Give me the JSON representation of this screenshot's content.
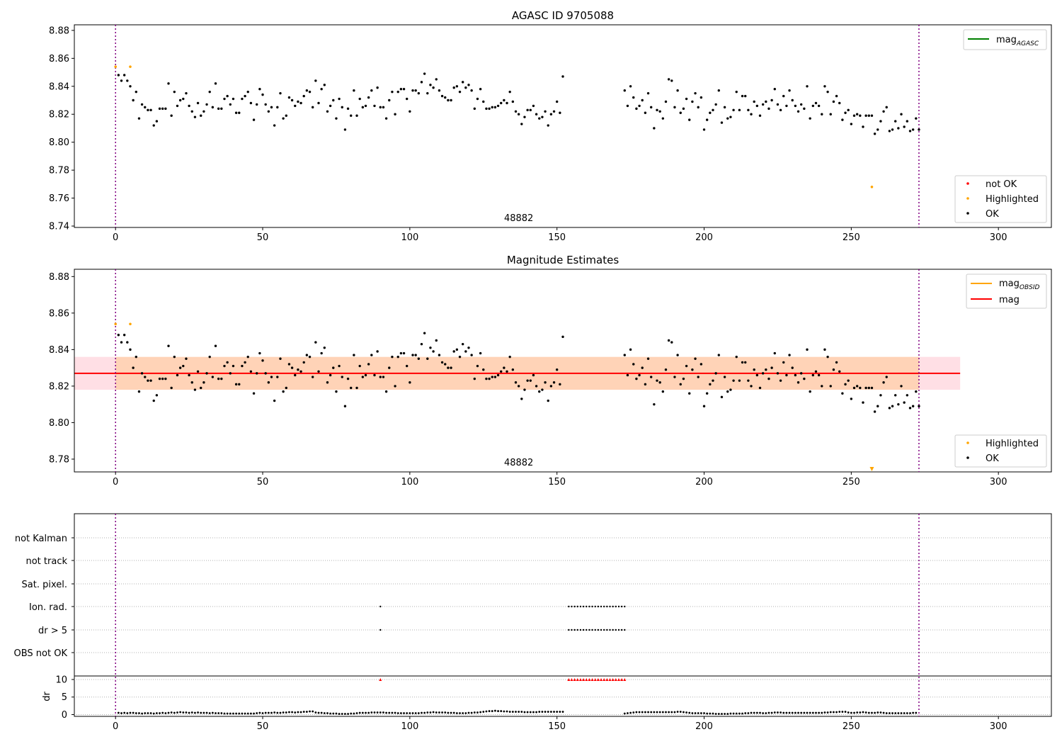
{
  "chart_data": [
    {
      "type": "scatter",
      "title": "AGASC ID 9705088",
      "xlim": [
        -14,
        318
      ],
      "ylim": [
        8.739,
        8.884
      ],
      "xticks": [
        "0",
        "50",
        "100",
        "150",
        "200",
        "250",
        "300"
      ],
      "yticks": [
        "8.74",
        "8.76",
        "8.78",
        "8.80",
        "8.82",
        "8.84",
        "8.86",
        "8.88"
      ],
      "obsid_label": "48882",
      "obsid_label_x": 137,
      "vlines": [
        0,
        273
      ],
      "lines_legend": [
        {
          "name": "mag_AGASC",
          "color": "#008000"
        }
      ],
      "points_legend": [
        {
          "name": "not OK",
          "color": "#ff0000"
        },
        {
          "name": "Highlighted",
          "color": "#ffa500"
        },
        {
          "name": "OK",
          "color": "#000000"
        }
      ],
      "highlighted_points": [
        [
          0,
          8.854
        ],
        [
          5,
          8.854
        ],
        [
          257,
          8.768
        ]
      ]
    },
    {
      "type": "scatter",
      "title": "Magnitude Estimates",
      "xlim": [
        -14,
        318
      ],
      "ylim": [
        8.773,
        8.884
      ],
      "xticks": [
        "0",
        "50",
        "100",
        "150",
        "200",
        "250",
        "300"
      ],
      "yticks": [
        "8.78",
        "8.80",
        "8.82",
        "8.84",
        "8.86",
        "8.88"
      ],
      "obsid_label": "48882",
      "obsid_label_x": 137,
      "vlines": [
        0,
        273
      ],
      "mag": 8.827,
      "band": [
        8.818,
        8.836
      ],
      "band_x": [
        -14,
        287
      ],
      "lines_legend": [
        {
          "name": "mag_OBSID",
          "color": "#ffa500"
        },
        {
          "name": "mag",
          "color": "#ff0000"
        }
      ],
      "points_legend": [
        {
          "name": "Highlighted",
          "color": "#ffa500"
        },
        {
          "name": "OK",
          "color": "#000000"
        }
      ],
      "highlighted_points": [
        [
          0,
          8.854
        ],
        [
          5,
          8.854
        ]
      ],
      "out_of_range_marker": {
        "x": 257,
        "color": "#ffa500"
      }
    },
    {
      "type": "scatter",
      "title": "",
      "xlim": [
        -14,
        318
      ],
      "xticks": [
        "0",
        "50",
        "100",
        "150",
        "200",
        "250",
        "300"
      ],
      "vlines": [
        0,
        273
      ],
      "flag_rows": [
        "not Kalman",
        "not track",
        "Sat. pixel.",
        "Ion. rad.",
        "dr > 5",
        "OBS not OK"
      ],
      "flags": {
        "Ion. rad.": [
          90,
          154,
          155,
          156,
          157,
          158,
          159,
          160,
          161,
          162,
          163,
          164,
          165,
          166,
          167,
          168,
          169,
          170,
          171,
          172,
          173
        ],
        "dr > 5": [
          90,
          154,
          155,
          156,
          157,
          158,
          159,
          160,
          161,
          162,
          163,
          164,
          165,
          166,
          167,
          168,
          169,
          170,
          171,
          172,
          173
        ]
      },
      "dr_ylabel": "dr",
      "dr_yticks": [
        "0",
        "5",
        "10"
      ],
      "dr_ylim": [
        -0.5,
        11
      ],
      "dr_clipped_x": [
        90,
        154,
        155,
        156,
        157,
        158,
        159,
        160,
        161,
        162,
        163,
        164,
        165,
        166,
        167,
        168,
        169,
        170,
        171,
        172,
        173
      ],
      "dr_values": [
        0.5,
        0.4,
        0.5,
        0.4,
        0.5,
        0.5,
        0.4,
        0.4,
        0.3,
        0.4,
        0.4,
        0.4,
        0.3,
        0.4,
        0.4,
        0.5,
        0.4,
        0.5,
        0.6,
        0.5,
        0.6,
        0.7,
        0.6,
        0.6,
        0.5,
        0.6,
        0.5,
        0.6,
        0.5,
        0.5,
        0.5,
        0.4,
        0.5,
        0.4,
        0.4,
        0.4,
        0.3,
        0.3,
        0.3,
        0.3,
        0.3,
        0.3,
        0.3,
        0.3,
        0.3,
        0.3,
        0.3,
        0.4,
        0.5,
        0.4,
        0.5,
        0.5,
        0.5,
        0.6,
        0.5,
        0.5,
        0.6,
        0.6,
        0.7,
        0.7,
        0.6,
        0.7,
        0.7,
        0.8,
        0.8,
        0.9,
        0.9,
        0.6,
        0.5,
        0.5,
        0.4,
        0.4,
        0.3,
        0.3,
        0.3,
        0.2,
        0.2,
        0.2,
        0.2,
        0.3,
        0.3,
        0.4,
        0.5,
        0.5,
        0.5,
        0.5,
        0.6,
        0.6,
        0.6,
        0.6,
        0.6,
        0.5,
        0.5,
        0.5,
        0.5,
        0.4,
        0.4,
        0.4,
        0.4,
        0.4,
        0.4,
        0.4,
        0.4,
        0.5,
        0.5,
        0.6,
        0.6,
        0.7,
        0.6,
        0.6,
        0.6,
        0.6,
        0.5,
        0.5,
        0.5,
        0.4,
        0.4,
        0.4,
        0.4,
        0.5,
        0.5,
        0.6,
        0.6,
        0.7,
        0.8,
        0.9,
        1.0,
        1.0,
        1.1,
        1.0,
        1.0,
        0.9,
        0.9,
        0.8,
        0.8,
        0.8,
        0.8,
        0.8,
        0.7,
        0.7,
        0.7,
        0.7,
        0.7,
        0.8,
        0.8,
        0.8,
        0.8,
        0.8,
        0.8,
        0.8,
        0.8,
        0.8,
        null,
        null,
        null,
        null,
        null,
        null,
        null,
        null,
        null,
        null,
        null,
        null,
        null,
        null,
        null,
        null,
        null,
        null,
        null,
        null,
        0.3,
        0.4,
        0.5,
        0.6,
        0.7,
        0.7,
        0.7,
        0.7,
        0.7,
        0.7,
        0.7,
        0.7,
        0.7,
        0.7,
        0.7,
        0.7,
        0.7,
        0.7,
        0.8,
        0.8,
        0.7,
        0.6,
        0.5,
        0.4,
        0.4,
        0.4,
        0.4,
        0.4,
        0.3,
        0.3,
        0.3,
        0.2,
        0.2,
        0.2,
        0.2,
        0.2,
        0.3,
        0.3,
        0.3,
        0.3,
        0.3,
        0.4,
        0.4,
        0.5,
        0.5,
        0.5,
        0.5,
        0.4,
        0.4,
        0.5,
        0.5,
        0.6,
        0.6,
        0.6,
        0.5,
        0.5,
        0.5,
        0.5,
        0.5,
        0.5,
        0.5,
        0.5,
        0.5,
        0.5,
        0.5,
        0.5,
        0.5,
        0.5,
        0.6,
        0.6,
        0.7,
        0.7,
        0.7,
        0.8,
        0.8,
        0.8,
        0.6,
        0.5,
        0.5,
        0.6,
        0.6,
        0.7,
        0.6,
        0.5,
        0.5,
        0.5,
        0.6,
        0.6,
        0.5,
        0.4,
        0.4,
        0.4,
        0.4,
        0.4,
        0.4,
        0.4,
        0.4,
        0.4,
        0.5,
        0.5
      ]
    }
  ],
  "mag_values": [
    8.848,
    8.844,
    8.848,
    8.844,
    8.84,
    8.83,
    8.836,
    8.817,
    8.827,
    8.825,
    8.823,
    8.823,
    8.812,
    8.815,
    8.824,
    8.824,
    8.824,
    8.842,
    8.819,
    8.836,
    8.826,
    8.83,
    8.831,
    8.835,
    8.826,
    8.822,
    8.818,
    8.828,
    8.819,
    8.822,
    8.827,
    8.836,
    8.825,
    8.842,
    8.824,
    8.824,
    8.831,
    8.833,
    8.827,
    8.831,
    8.821,
    8.821,
    8.831,
    8.833,
    8.836,
    8.828,
    8.816,
    8.827,
    8.838,
    8.834,
    8.827,
    8.822,
    8.825,
    8.812,
    8.825,
    8.835,
    8.817,
    8.819,
    8.832,
    8.83,
    8.826,
    8.829,
    8.828,
    8.833,
    8.837,
    8.836,
    8.825,
    8.844,
    8.828,
    8.838,
    8.841,
    8.822,
    8.826,
    8.83,
    8.817,
    8.831,
    8.825,
    8.809,
    8.824,
    8.819,
    8.837,
    8.819,
    8.831,
    8.825,
    8.826,
    8.832,
    8.837,
    8.826,
    8.839,
    8.825,
    8.825,
    8.817,
    8.83,
    8.836,
    8.82,
    8.836,
    8.838,
    8.838,
    8.831,
    8.822,
    8.837,
    8.837,
    8.835,
    8.843,
    8.849,
    8.835,
    8.841,
    8.839,
    8.845,
    8.837,
    8.833,
    8.832,
    8.83,
    8.83,
    8.839,
    8.84,
    8.836,
    8.843,
    8.839,
    8.841,
    8.837,
    8.824,
    8.831,
    8.838,
    8.829,
    8.824,
    8.824,
    8.825,
    8.825,
    8.826,
    8.828,
    8.83,
    8.828,
    8.836,
    8.829,
    8.822,
    8.82,
    8.813,
    8.818,
    8.823,
    8.823,
    8.826,
    8.82,
    8.817,
    8.818,
    8.822,
    8.812,
    8.82,
    8.822,
    8.829,
    8.821,
    8.847,
    null,
    null,
    null,
    null,
    null,
    null,
    null,
    null,
    null,
    null,
    null,
    null,
    null,
    null,
    null,
    null,
    null,
    null,
    null,
    null,
    8.837,
    8.826,
    8.84,
    8.832,
    8.824,
    8.826,
    8.83,
    8.821,
    8.835,
    8.825,
    8.81,
    8.823,
    8.822,
    8.817,
    8.829,
    8.845,
    8.844,
    8.825,
    8.837,
    8.821,
    8.824,
    8.831,
    8.816,
    8.829,
    8.835,
    8.825,
    8.832,
    8.809,
    8.816,
    8.821,
    8.823,
    8.827,
    8.837,
    8.814,
    8.825,
    8.817,
    8.818,
    8.823,
    8.836,
    8.823,
    8.833,
    8.833,
    8.823,
    8.82,
    8.829,
    8.826,
    8.819,
    8.827,
    8.829,
    8.824,
    8.83,
    8.838,
    8.827,
    8.823,
    8.833,
    8.826,
    8.837,
    8.83,
    8.826,
    8.822,
    8.827,
    8.824,
    8.84,
    8.817,
    8.826,
    8.828,
    8.826,
    8.82,
    8.84,
    8.836,
    8.82,
    8.829,
    8.833,
    8.828,
    8.816,
    8.821,
    8.823,
    8.813,
    8.819,
    8.82,
    8.819,
    8.811,
    8.819,
    8.819,
    8.819,
    8.806,
    8.809,
    8.815,
    8.822,
    8.825,
    8.808,
    8.809,
    8.815,
    8.81,
    8.82,
    8.811,
    8.815,
    8.808,
    8.809,
    8.817,
    8.809
  ]
}
